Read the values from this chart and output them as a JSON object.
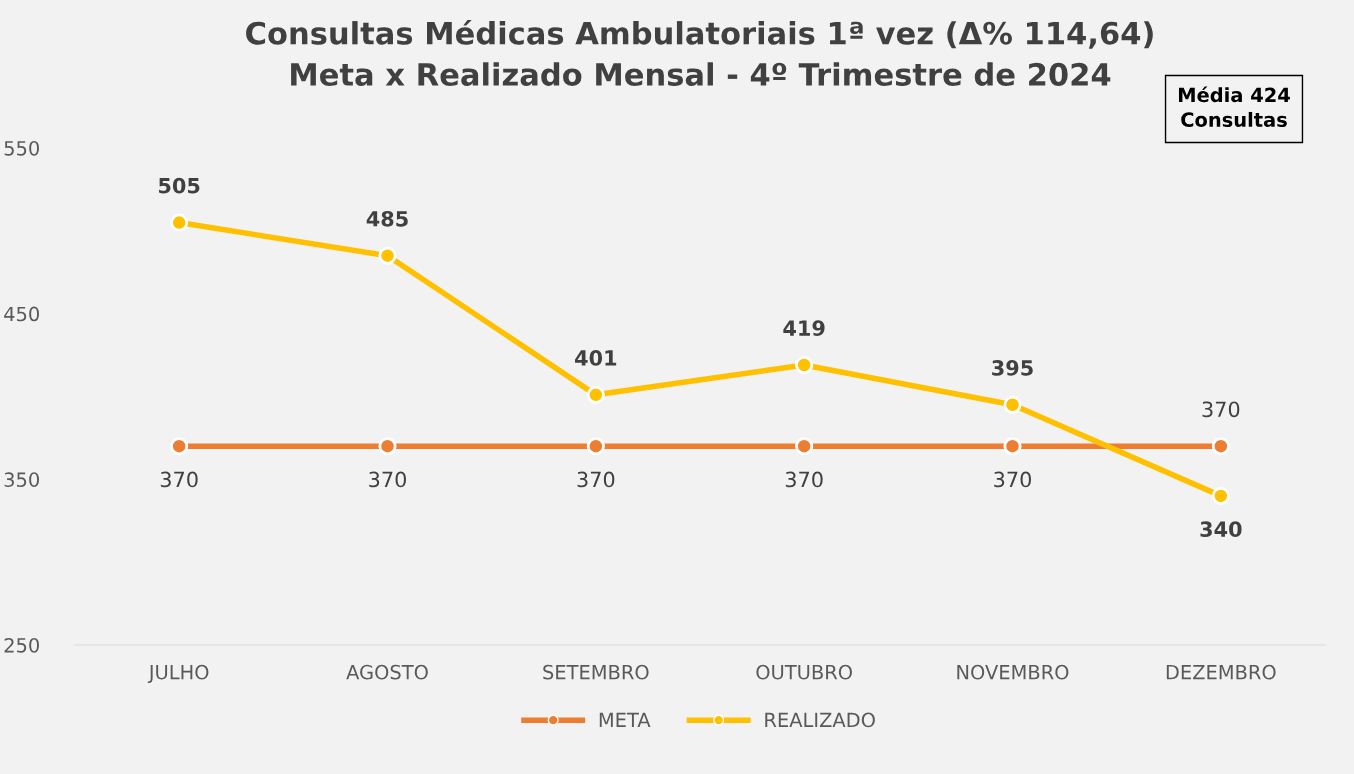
{
  "chart_data": {
    "type": "line",
    "title": "Consultas Médicas Ambulatoriais 1ª vez (Δ% 114,64)\nMeta x Realizado Mensal - 4º Trimestre de 2024",
    "categories": [
      "JULHO",
      "AGOSTO",
      "SETEMBRO",
      "OUTUBRO",
      "NOVEMBRO",
      "DEZEMBRO"
    ],
    "series": [
      {
        "name": "META",
        "color": "#ed7d31",
        "values": [
          370,
          370,
          370,
          370,
          370,
          370
        ]
      },
      {
        "name": "REALIZADO",
        "color": "#ffc000",
        "values": [
          505,
          485,
          401,
          419,
          395,
          340
        ]
      }
    ],
    "ylim": [
      250,
      550
    ],
    "yticks": [
      250,
      350,
      450,
      550
    ],
    "grid": false,
    "legend": "bottom",
    "marker": "circle",
    "line_style": "solid",
    "data_labels": true,
    "annotations": [
      "Média 424\nConsultas"
    ]
  }
}
